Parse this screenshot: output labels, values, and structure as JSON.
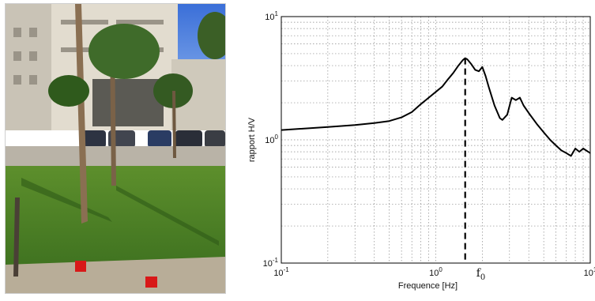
{
  "photo": {
    "description_icon": "site-photo-icon"
  },
  "chart_data": {
    "type": "line",
    "xscale": "log",
    "yscale": "log",
    "xlim": [
      0.1,
      10
    ],
    "ylim": [
      0.1,
      10
    ],
    "xlabel": "Frequence [Hz]",
    "ylabel": "rapport H/V",
    "grid": true,
    "x_tick_labels": [
      {
        "value": 0.1,
        "base": "10",
        "exp": "-1"
      },
      {
        "value": 1,
        "base": "10",
        "exp": "0"
      },
      {
        "value": 10,
        "base": "10",
        "exp": "1"
      }
    ],
    "y_tick_labels": [
      {
        "value": 0.1,
        "base": "10",
        "exp": "-1"
      },
      {
        "value": 1,
        "base": "10",
        "exp": "0"
      },
      {
        "value": 10,
        "base": "10",
        "exp": "1"
      }
    ],
    "annotation": {
      "label": "f",
      "sub": "0",
      "x": 1.55
    },
    "series": [
      {
        "color": "#000000",
        "x": [
          0.1,
          0.2,
          0.3,
          0.4,
          0.5,
          0.6,
          0.7,
          0.8,
          0.9,
          1.0,
          1.1,
          1.2,
          1.3,
          1.4,
          1.5,
          1.55,
          1.6,
          1.7,
          1.8,
          1.9,
          2.0,
          2.1,
          2.2,
          2.4,
          2.6,
          2.7,
          2.9,
          3.1,
          3.3,
          3.5,
          3.7,
          4.0,
          4.5,
          5.0,
          5.5,
          6.0,
          6.5,
          7.0,
          7.5,
          8.0,
          8.5,
          9.0,
          10.0
        ],
        "y": [
          1.2,
          1.27,
          1.32,
          1.37,
          1.42,
          1.52,
          1.68,
          1.95,
          2.2,
          2.45,
          2.7,
          3.1,
          3.5,
          4.0,
          4.45,
          4.6,
          4.5,
          4.1,
          3.7,
          3.6,
          3.9,
          3.3,
          2.7,
          1.9,
          1.5,
          1.45,
          1.6,
          2.2,
          2.1,
          2.2,
          1.9,
          1.65,
          1.35,
          1.15,
          1.0,
          0.9,
          0.82,
          0.78,
          0.74,
          0.85,
          0.8,
          0.85,
          0.78
        ]
      }
    ]
  }
}
